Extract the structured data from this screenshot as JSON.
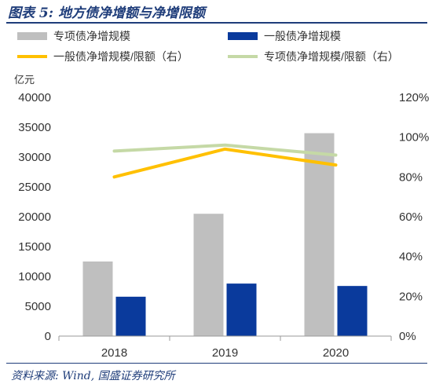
{
  "figure_title": "图表 5:  地方债净增额与净增限额",
  "source": "资料来源:  Wind, 国盛证券研究所",
  "chart_data": {
    "type": "bar",
    "categories": [
      "2018",
      "2019",
      "2020"
    ],
    "ylabel_left": "亿元",
    "ylim_left": [
      0,
      40000
    ],
    "yticks_left": [
      "0",
      "5000",
      "10000",
      "15000",
      "20000",
      "25000",
      "30000",
      "35000",
      "40000"
    ],
    "ylim_right": [
      0,
      1.2
    ],
    "yticks_right": [
      "0%",
      "20%",
      "40%",
      "60%",
      "80%",
      "100%",
      "120%"
    ],
    "legend_position": "top",
    "bar_series": [
      {
        "name": "专项债净增规模",
        "color": "#bfbfbf",
        "values": [
          12500,
          20500,
          34000
        ]
      },
      {
        "name": "一般债净增规模",
        "color": "#0a3a9c",
        "values": [
          6600,
          8800,
          8400
        ]
      }
    ],
    "line_series": [
      {
        "name": "一般债净增规模/限额（右）",
        "color": "#ffc000",
        "values": [
          0.8,
          0.94,
          0.86
        ]
      },
      {
        "name": "专项债净增规模/限额（右）",
        "color": "#c5d9a6",
        "values": [
          0.93,
          0.96,
          0.91
        ]
      }
    ]
  }
}
